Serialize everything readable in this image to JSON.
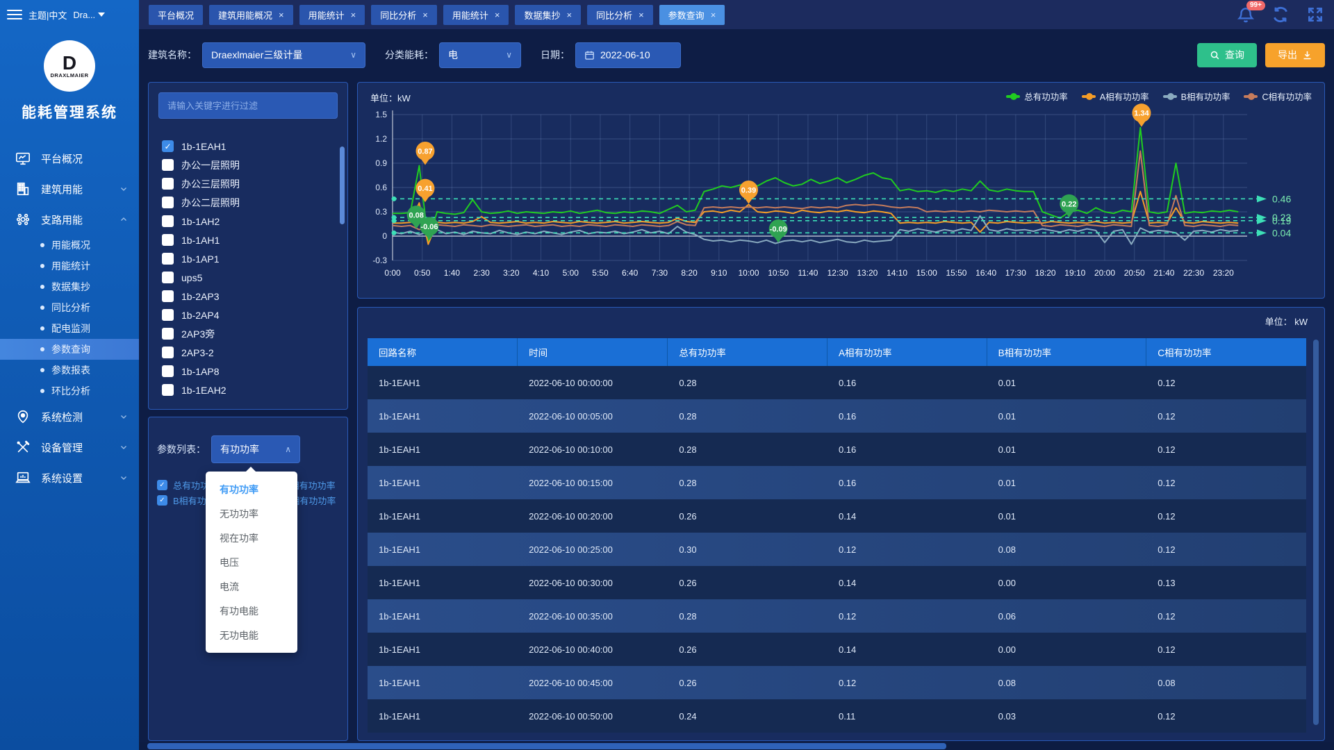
{
  "topbar": {
    "theme_label": "主题|中文",
    "user_label": "Dra...",
    "notification_badge": "99+",
    "tabs": [
      {
        "label": "平台概况",
        "closable": false,
        "active": false
      },
      {
        "label": "建筑用能概况",
        "closable": true,
        "active": false
      },
      {
        "label": "用能统计",
        "closable": true,
        "active": false
      },
      {
        "label": "同比分析",
        "closable": true,
        "active": false
      },
      {
        "label": "用能统计",
        "closable": true,
        "active": false
      },
      {
        "label": "数据集抄",
        "closable": true,
        "active": false
      },
      {
        "label": "同比分析",
        "closable": true,
        "active": false
      },
      {
        "label": "参数查询",
        "closable": true,
        "active": true
      }
    ]
  },
  "sidebar": {
    "logo_letter": "D",
    "logo_brand": "DRAXLMAIER",
    "app_title": "能耗管理系统",
    "items": [
      {
        "label": "平台概况",
        "icon": "monitor-icon",
        "chevron": "",
        "children": []
      },
      {
        "label": "建筑用能",
        "icon": "building-icon",
        "chevron": "down",
        "children": []
      },
      {
        "label": "支路用能",
        "icon": "branch-icon",
        "chevron": "up",
        "children": [
          "用能概况",
          "用能统计",
          "数据集抄",
          "同比分析",
          "配电监测",
          "参数查询",
          "参数报表",
          "环比分析"
        ],
        "active_child": "参数查询"
      },
      {
        "label": "系统检测",
        "icon": "pin-icon",
        "chevron": "down",
        "children": []
      },
      {
        "label": "设备管理",
        "icon": "tools-icon",
        "chevron": "down",
        "children": []
      },
      {
        "label": "系统设置",
        "icon": "laptop-icon",
        "chevron": "down",
        "children": []
      }
    ]
  },
  "filters": {
    "building_label": "建筑名称：",
    "building_value": "Draexlmaier三级计量",
    "energy_label": "分类能耗：",
    "energy_value": "电",
    "date_label": "日期：",
    "date_value": "2022-06-10",
    "query_button": "查询",
    "export_button": "导出"
  },
  "device_panel": {
    "search_placeholder": "请输入关键字进行过滤",
    "items": [
      {
        "label": "1b-1EAH1",
        "checked": true
      },
      {
        "label": "办公一层照明",
        "checked": false
      },
      {
        "label": "办公三层照明",
        "checked": false
      },
      {
        "label": "办公二层照明",
        "checked": false
      },
      {
        "label": "1b-1AH2",
        "checked": false
      },
      {
        "label": "1b-1AH1",
        "checked": false
      },
      {
        "label": "1b-1AP1",
        "checked": false
      },
      {
        "label": "ups5",
        "checked": false
      },
      {
        "label": "1b-2AP3",
        "checked": false
      },
      {
        "label": "1b-2AP4",
        "checked": false
      },
      {
        "label": "2AP3旁",
        "checked": false
      },
      {
        "label": "2AP3-2",
        "checked": false
      },
      {
        "label": "1b-1AP8",
        "checked": false
      },
      {
        "label": "1b-1EAH2",
        "checked": false
      }
    ]
  },
  "param_panel": {
    "label": "参数列表：",
    "selected": "有功功率",
    "options": [
      "有功功率",
      "无功功率",
      "视在功率",
      "电压",
      "电流",
      "有功电能",
      "无功电能"
    ],
    "checkboxes": [
      {
        "label": "总有功功率",
        "checked": true
      },
      {
        "label": "A相有功功率",
        "checked": true
      },
      {
        "label": "B相有功功率",
        "checked": true
      },
      {
        "label": "C相有功功率",
        "checked": true
      }
    ]
  },
  "chart": {
    "unit_label": "单位：kW",
    "chart_data": {
      "type": "line",
      "ylim": [
        -0.3,
        1.5
      ],
      "y_ticks": [
        "1.5",
        "1.2",
        "0.9",
        "0.6",
        "0.3",
        "0",
        "-0.3"
      ],
      "x_ticks": [
        "0:00",
        "0:50",
        "1:40",
        "2:30",
        "3:20",
        "4:10",
        "5:00",
        "5:50",
        "6:40",
        "7:30",
        "8:20",
        "9:10",
        "10:00",
        "10:50",
        "11:40",
        "12:30",
        "13:20",
        "14:10",
        "15:00",
        "15:50",
        "16:40",
        "17:30",
        "18:20",
        "19:10",
        "20:00",
        "20:50",
        "21:40",
        "22:30",
        "23:20"
      ],
      "x_tick_step_minutes": 50,
      "point_step_minutes": 15,
      "x_total_minutes": 1440,
      "legend_position": "top-right",
      "grid": true,
      "series": [
        {
          "name": "总有功功率",
          "color": "#20cc20",
          "values": [
            0.28,
            0.28,
            0.29,
            0.87,
            -0.06,
            0.3,
            0.28,
            0.27,
            0.29,
            0.45,
            0.3,
            0.28,
            0.29,
            0.31,
            0.28,
            0.3,
            0.29,
            0.28,
            0.3,
            0.29,
            0.31,
            0.28,
            0.3,
            0.32,
            0.29,
            0.28,
            0.3,
            0.29,
            0.31,
            0.3,
            0.28,
            0.33,
            0.38,
            0.3,
            0.32,
            0.55,
            0.58,
            0.62,
            0.6,
            0.63,
            0.65,
            0.62,
            0.68,
            0.72,
            0.66,
            0.62,
            0.64,
            0.7,
            0.65,
            0.68,
            0.72,
            0.66,
            0.7,
            0.75,
            0.78,
            0.72,
            0.7,
            0.56,
            0.58,
            0.55,
            0.56,
            0.54,
            0.57,
            0.55,
            0.58,
            0.56,
            0.68,
            0.57,
            0.55,
            0.58,
            0.56,
            0.55,
            0.55,
            0.3,
            0.26,
            0.22,
            0.3,
            0.32,
            0.28,
            0.35,
            0.3,
            0.28,
            0.32,
            0.3,
            1.34,
            0.3,
            0.28,
            0.3,
            0.9,
            0.28,
            0.3,
            0.29,
            0.31,
            0.3,
            0.32,
            0.3
          ]
        },
        {
          "name": "A相有功功率",
          "color": "#f59d27",
          "values": [
            0.16,
            0.16,
            0.17,
            0.41,
            -0.1,
            0.17,
            0.16,
            0.17,
            0.16,
            0.18,
            0.24,
            0.17,
            0.16,
            0.17,
            0.18,
            0.16,
            0.17,
            0.16,
            0.18,
            0.17,
            0.16,
            0.18,
            0.17,
            0.16,
            0.17,
            0.18,
            0.16,
            0.17,
            0.18,
            0.17,
            0.16,
            0.17,
            0.22,
            0.18,
            0.17,
            0.3,
            0.31,
            0.29,
            0.32,
            0.3,
            0.39,
            0.3,
            0.29,
            0.31,
            0.3,
            0.28,
            0.32,
            0.3,
            0.29,
            0.31,
            0.3,
            0.32,
            0.3,
            0.29,
            0.31,
            0.3,
            0.28,
            0.16,
            0.17,
            0.16,
            0.17,
            0.16,
            0.18,
            0.17,
            0.16,
            0.17,
            0.05,
            0.17,
            0.16,
            0.18,
            0.17,
            0.16,
            0.17,
            0.16,
            0.18,
            0.17,
            0.16,
            0.17,
            0.16,
            0.18,
            0.16,
            0.17,
            0.16,
            0.17,
            0.55,
            0.16,
            0.17,
            0.16,
            0.35,
            0.17,
            0.16,
            0.18,
            0.17,
            0.16,
            0.17,
            0.16
          ]
        },
        {
          "name": "B相有功功率",
          "color": "#8aabc0",
          "values": [
            0.05,
            0.03,
            0.06,
            0.02,
            0.05,
            0.08,
            0.03,
            0.05,
            0.02,
            0.06,
            0.04,
            0.03,
            0.07,
            0.04,
            0.02,
            0.05,
            0.03,
            0.06,
            0.04,
            0.02,
            0.05,
            0.07,
            0.03,
            0.05,
            0.04,
            0.06,
            0.03,
            0.05,
            0.08,
            0.04,
            0.06,
            0.03,
            0.12,
            0.05,
            0.02,
            -0.04,
            -0.06,
            -0.05,
            -0.07,
            -0.05,
            -0.06,
            -0.08,
            -0.05,
            -0.09,
            -0.06,
            -0.05,
            -0.07,
            -0.05,
            -0.08,
            -0.06,
            -0.04,
            -0.07,
            -0.08,
            -0.05,
            -0.07,
            -0.06,
            -0.05,
            0.08,
            0.06,
            0.09,
            0.07,
            0.05,
            0.08,
            0.06,
            0.09,
            0.07,
            0.25,
            0.08,
            0.06,
            0.09,
            0.07,
            0.08,
            0.06,
            0.09,
            0.07,
            0.05,
            0.08,
            0.06,
            0.09,
            0.07,
            -0.08,
            0.06,
            0.08,
            -0.1,
            0.1,
            0.05,
            0.07,
            0.06,
            0.04,
            -0.05,
            0.06,
            0.07,
            0.05,
            0.08,
            0.06,
            0.07
          ]
        },
        {
          "name": "C相有功功率",
          "color": "#c67c5c",
          "values": [
            0.13,
            0.12,
            0.13,
            0.08,
            0.12,
            0.14,
            0.13,
            0.12,
            0.14,
            0.13,
            0.12,
            0.14,
            0.13,
            0.12,
            0.13,
            0.14,
            0.12,
            0.13,
            0.14,
            0.12,
            0.13,
            0.12,
            0.14,
            0.13,
            0.12,
            0.14,
            0.13,
            0.12,
            0.14,
            0.13,
            0.12,
            0.13,
            0.18,
            0.14,
            0.13,
            0.35,
            0.36,
            0.35,
            0.36,
            0.35,
            0.36,
            0.35,
            0.36,
            0.35,
            0.36,
            0.35,
            0.34,
            0.36,
            0.35,
            0.36,
            0.35,
            0.38,
            0.39,
            0.38,
            0.39,
            0.38,
            0.36,
            0.35,
            0.36,
            0.35,
            0.3,
            0.31,
            0.3,
            0.31,
            0.3,
            0.31,
            0.3,
            0.32,
            0.31,
            0.3,
            0.31,
            0.3,
            0.31,
            0.13,
            0.12,
            0.14,
            0.13,
            0.12,
            0.14,
            0.13,
            0.12,
            0.14,
            0.13,
            0.12,
            1.05,
            0.13,
            0.12,
            0.14,
            0.5,
            0.13,
            0.12,
            0.14,
            0.13,
            0.12,
            0.14,
            0.13
          ]
        }
      ],
      "avg_lines": [
        {
          "label": "0.46",
          "value": 0.46
        },
        {
          "label": "0.23",
          "value": 0.23
        },
        {
          "label": "0.19",
          "value": 0.19
        },
        {
          "label": "0.04",
          "value": 0.04
        }
      ],
      "avg_line_color": "#3ddfb7",
      "avg_label_color": "#7becb0",
      "annotations": [
        {
          "label": "0.87",
          "minute": 55,
          "value": 0.87,
          "color": "#f7a12f"
        },
        {
          "label": "0.41",
          "minute": 55,
          "value": 0.41,
          "color": "#f7a12f"
        },
        {
          "label": "0.08",
          "minute": 40,
          "value": 0.08,
          "color": "#2fa352"
        },
        {
          "label": "-0.06",
          "minute": 62,
          "value": -0.06,
          "color": "#2fa352"
        },
        {
          "label": "0.39",
          "minute": 600,
          "value": 0.39,
          "color": "#f7a12f"
        },
        {
          "label": "-0.09",
          "minute": 650,
          "value": -0.09,
          "color": "#2fa352"
        },
        {
          "label": "0.22",
          "minute": 1140,
          "value": 0.22,
          "color": "#2fa352"
        },
        {
          "label": "1.34",
          "minute": 1262,
          "value": 1.34,
          "color": "#f7a12f"
        }
      ]
    }
  },
  "table": {
    "unit_label": "单位： kW",
    "columns": [
      "回路名称",
      "时间",
      "总有功功率",
      "A相有功功率",
      "B相有功功率",
      "C相有功功率"
    ],
    "rows": [
      [
        "1b-1EAH1",
        "2022-06-10 00:00:00",
        "0.28",
        "0.16",
        "0.01",
        "0.12"
      ],
      [
        "1b-1EAH1",
        "2022-06-10 00:05:00",
        "0.28",
        "0.16",
        "0.01",
        "0.12"
      ],
      [
        "1b-1EAH1",
        "2022-06-10 00:10:00",
        "0.28",
        "0.16",
        "0.01",
        "0.12"
      ],
      [
        "1b-1EAH1",
        "2022-06-10 00:15:00",
        "0.28",
        "0.16",
        "0.01",
        "0.12"
      ],
      [
        "1b-1EAH1",
        "2022-06-10 00:20:00",
        "0.26",
        "0.14",
        "0.01",
        "0.12"
      ],
      [
        "1b-1EAH1",
        "2022-06-10 00:25:00",
        "0.30",
        "0.12",
        "0.08",
        "0.12"
      ],
      [
        "1b-1EAH1",
        "2022-06-10 00:30:00",
        "0.26",
        "0.14",
        "0.00",
        "0.13"
      ],
      [
        "1b-1EAH1",
        "2022-06-10 00:35:00",
        "0.28",
        "0.12",
        "0.06",
        "0.12"
      ],
      [
        "1b-1EAH1",
        "2022-06-10 00:40:00",
        "0.26",
        "0.14",
        "0.00",
        "0.12"
      ],
      [
        "1b-1EAH1",
        "2022-06-10 00:45:00",
        "0.26",
        "0.12",
        "0.08",
        "0.08"
      ],
      [
        "1b-1EAH1",
        "2022-06-10 00:50:00",
        "0.24",
        "0.11",
        "0.03",
        "0.12"
      ]
    ]
  }
}
